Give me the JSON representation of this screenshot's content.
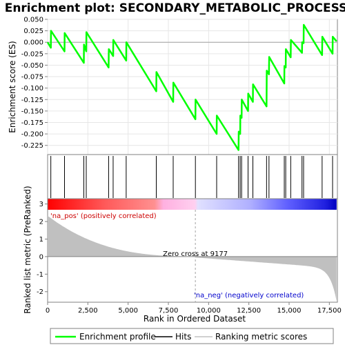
{
  "chart_data": {
    "type": "line",
    "title": "Enrichment plot: SECONDARY_METABOLIC_PROCESS",
    "es_panel": {
      "ylabel": "Enrichment score (ES)",
      "ylim": [
        -0.245,
        0.05
      ],
      "yticks": [
        "0.050",
        "0.025",
        "0.000",
        "-0.025",
        "-0.050",
        "-0.075",
        "-0.100",
        "-0.125",
        "-0.150",
        "-0.175",
        "-0.200",
        "-0.225"
      ],
      "ytick_values": [
        0.05,
        0.025,
        0.0,
        -0.025,
        -0.05,
        -0.075,
        -0.1,
        -0.125,
        -0.15,
        -0.175,
        -0.2,
        -0.225
      ],
      "series": [
        {
          "name": "Enrichment profile",
          "color": "#00ff00",
          "x": [
            0,
            200,
            210,
            1050,
            1060,
            2250,
            2260,
            2400,
            2410,
            3790,
            3800,
            4070,
            4080,
            4880,
            4890,
            6750,
            6760,
            7800,
            7810,
            9180,
            9190,
            10500,
            10510,
            11860,
            11870,
            11960,
            11970,
            12050,
            12060,
            12450,
            12460,
            12750,
            12760,
            13600,
            13610,
            13750,
            13760,
            14700,
            14710,
            14790,
            14800,
            15100,
            15110,
            15800,
            15810,
            15900,
            15910,
            17050,
            17060,
            17700,
            17710,
            17950
          ],
          "values": [
            0.0,
            -0.012,
            0.025,
            -0.02,
            0.02,
            -0.045,
            -0.005,
            -0.02,
            0.022,
            -0.055,
            -0.015,
            -0.03,
            0.005,
            -0.04,
            0.0,
            -0.107,
            -0.065,
            -0.13,
            -0.088,
            -0.168,
            -0.125,
            -0.2,
            -0.16,
            -0.235,
            -0.195,
            -0.2,
            -0.16,
            -0.165,
            -0.125,
            -0.15,
            -0.112,
            -0.13,
            -0.092,
            -0.14,
            -0.062,
            -0.07,
            -0.032,
            -0.09,
            -0.052,
            -0.055,
            -0.015,
            -0.033,
            0.005,
            -0.023,
            0.0,
            -0.002,
            0.038,
            -0.028,
            0.012,
            -0.025,
            0.012,
            0.002
          ]
        }
      ]
    },
    "hits": [
      200,
      1050,
      2250,
      2400,
      3790,
      4070,
      4880,
      6750,
      7800,
      9180,
      10500,
      11860,
      11960,
      12050,
      12450,
      12750,
      13600,
      13750,
      14700,
      14790,
      15100,
      15800,
      15900,
      17050,
      17700
    ],
    "metric_panel": {
      "ylabel": "Ranked list metric (PreRanked)",
      "ylim": [
        -2.6,
        3.3
      ],
      "yticks": [
        "3",
        "2",
        "1",
        "0",
        "-1",
        "-2"
      ],
      "ytick_values": [
        3,
        2,
        1,
        0,
        -1,
        -2
      ],
      "fill_color": "#c0c0c0",
      "zero_cross_label": "Zero cross at 9177",
      "zero_cross_at": 9177,
      "pos_label": "'na_pos' (positively correlated)",
      "neg_label": "'na_neg' (negatively correlated)"
    },
    "xlabel": "Rank in Ordered Dataset",
    "xlim": [
      0,
      18000
    ],
    "xticks": [
      "0",
      "2,500",
      "5,000",
      "7,500",
      "10,000",
      "12,500",
      "15,000",
      "17,500"
    ],
    "xtick_values": [
      0,
      2500,
      5000,
      7500,
      10000,
      12500,
      15000,
      17500
    ],
    "total_rank": 17950,
    "legend": [
      "Enrichment profile",
      "Hits",
      "Ranking metric scores"
    ]
  }
}
